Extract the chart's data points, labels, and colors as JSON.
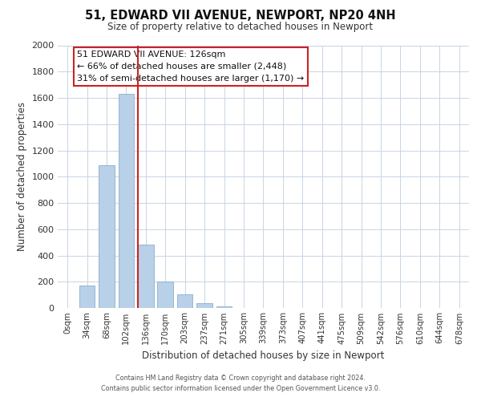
{
  "title": "51, EDWARD VII AVENUE, NEWPORT, NP20 4NH",
  "subtitle": "Size of property relative to detached houses in Newport",
  "xlabel": "Distribution of detached houses by size in Newport",
  "ylabel": "Number of detached properties",
  "bar_labels": [
    "0sqm",
    "34sqm",
    "68sqm",
    "102sqm",
    "136sqm",
    "170sqm",
    "203sqm",
    "237sqm",
    "271sqm",
    "305sqm",
    "339sqm",
    "373sqm",
    "407sqm",
    "441sqm",
    "475sqm",
    "509sqm",
    "542sqm",
    "576sqm",
    "610sqm",
    "644sqm",
    "678sqm"
  ],
  "bar_values": [
    0,
    170,
    1090,
    1630,
    480,
    200,
    105,
    35,
    15,
    0,
    0,
    0,
    0,
    0,
    0,
    0,
    0,
    0,
    0,
    0,
    0
  ],
  "bar_color": "#b8d0e8",
  "bar_edge_color": "#8ab0cc",
  "red_line_after_index": 4,
  "ylim": [
    0,
    2000
  ],
  "yticks": [
    0,
    200,
    400,
    600,
    800,
    1000,
    1200,
    1400,
    1600,
    1800,
    2000
  ],
  "annotation_line1": "51 EDWARD VII AVENUE: 126sqm",
  "annotation_line2": "← 66% of detached houses are smaller (2,448)",
  "annotation_line3": "31% of semi-detached houses are larger (1,170) →",
  "footer_line1": "Contains HM Land Registry data © Crown copyright and database right 2024.",
  "footer_line2": "Contains public sector information licensed under the Open Government Licence v3.0.",
  "background_color": "#ffffff",
  "grid_color": "#c8d4e4",
  "red_color": "#cc2222"
}
